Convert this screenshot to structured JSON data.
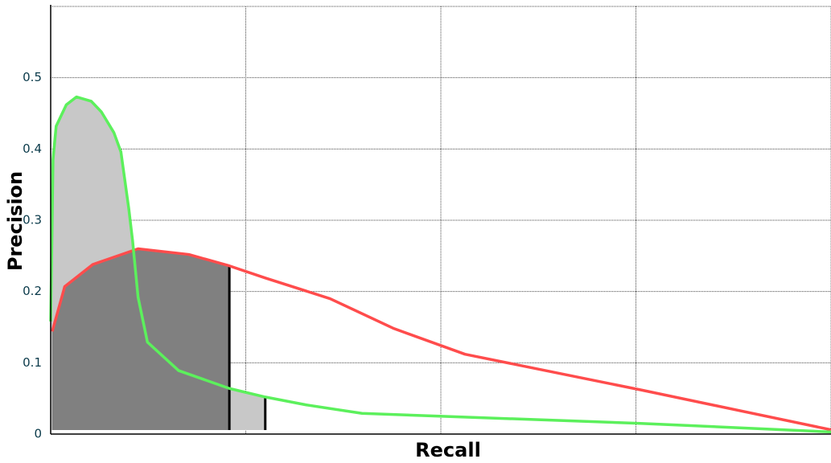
{
  "chart_data": {
    "type": "line",
    "xlabel": "Recall",
    "ylabel": "Precision",
    "xlim": [
      0,
      1
    ],
    "ylim": [
      0,
      0.6
    ],
    "xticks": [
      0,
      0.25,
      0.5,
      0.75,
      1
    ],
    "yticks": [
      0,
      0.1,
      0.2,
      0.3,
      0.4,
      0.5
    ],
    "grid": true,
    "series": [
      {
        "color": "#ff4c4c",
        "fill_color": "#808080",
        "fill_to": 0.229,
        "x": [
          0.002,
          0.018,
          0.054,
          0.112,
          0.177,
          0.229,
          0.275,
          0.358,
          0.44,
          0.531,
          0.756,
          1
        ],
        "values": [
          0.144,
          0.207,
          0.238,
          0.26,
          0.252,
          0.236,
          0.219,
          0.19,
          0.148,
          0.112,
          0.062,
          0.006
        ]
      },
      {
        "color": "#5cf05c",
        "fill_color": "#c8c8c8",
        "fill_to": 0.275,
        "x": [
          0,
          0.003,
          0.007,
          0.02,
          0.033,
          0.052,
          0.065,
          0.081,
          0.09,
          0.1,
          0.105,
          0.112,
          0.124,
          0.164,
          0.229,
          0.275,
          0.327,
          0.399,
          0.756,
          1
        ],
        "values": [
          0.158,
          0.385,
          0.432,
          0.462,
          0.473,
          0.467,
          0.452,
          0.423,
          0.396,
          0.317,
          0.271,
          0.192,
          0.129,
          0.089,
          0.064,
          0.052,
          0.041,
          0.029,
          0.015,
          0.003
        ]
      }
    ]
  }
}
